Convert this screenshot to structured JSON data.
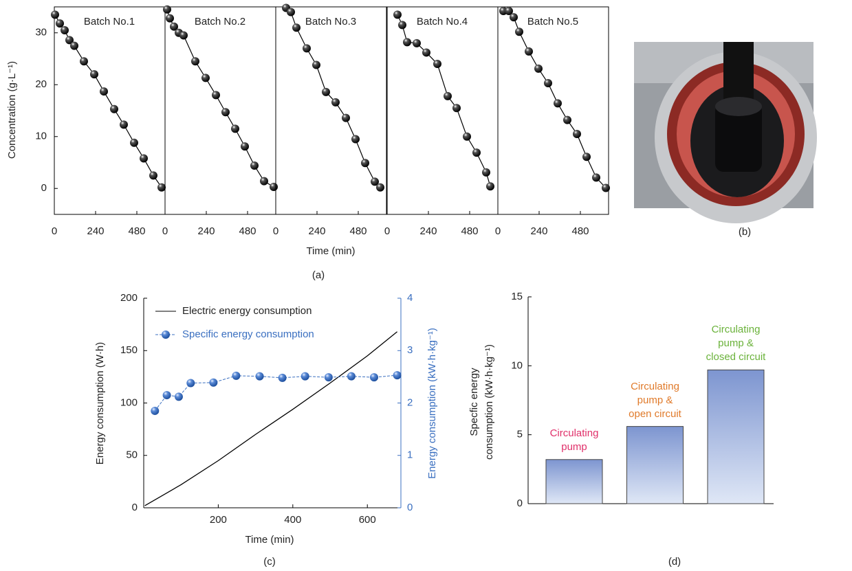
{
  "chart_data": [
    {
      "type": "batch-line",
      "caption": "(a)",
      "xlabel": "Time (min)",
      "ylabel": "Concentration (g·L⁻¹)",
      "ylim": [
        -5,
        35
      ],
      "yticks": [
        0,
        10,
        20,
        30
      ],
      "xlim": [
        0,
        644
      ],
      "xticks": [
        0,
        240,
        480
      ],
      "color": "#000000",
      "series": [
        {
          "name": "Batch No.1",
          "x": [
            4,
            32,
            60,
            88,
            116,
            172,
            232,
            288,
            348,
            404,
            464,
            520,
            576,
            624
          ],
          "values": [
            33.5,
            31.8,
            30.5,
            28.6,
            27.5,
            24.5,
            22,
            18.7,
            15.3,
            12.3,
            8.8,
            5.8,
            2.5,
            0.2
          ]
        },
        {
          "name": "Batch No.2",
          "x": [
            12,
            28,
            52,
            80,
            108,
            176,
            236,
            296,
            352,
            408,
            464,
            520,
            576,
            632
          ],
          "values": [
            34.5,
            32.8,
            31.2,
            30,
            29.5,
            24.5,
            21.3,
            18,
            14.7,
            11.5,
            8.1,
            4.4,
            1.4,
            0.3
          ]
        },
        {
          "name": "Batch No.3",
          "x": [
            60,
            88,
            120,
            180,
            236,
            292,
            348,
            408,
            464,
            520,
            576,
            608
          ],
          "values": [
            34.8,
            34,
            31,
            27,
            23.8,
            18.6,
            16.6,
            13.6,
            9.5,
            4.9,
            1.3,
            0.2
          ]
        },
        {
          "name": "Batch No.4",
          "x": [
            60,
            88,
            116,
            172,
            228,
            292,
            352,
            404,
            464,
            520,
            576,
            600
          ],
          "values": [
            33.5,
            31.5,
            28.2,
            28,
            26.2,
            24,
            17.8,
            15.5,
            10,
            6.9,
            3.1,
            0.4
          ]
        },
        {
          "name": "Batch No.5",
          "x": [
            32,
            64,
            92,
            124,
            180,
            236,
            292,
            348,
            404,
            460,
            516,
            572,
            628
          ],
          "values": [
            34.2,
            34.2,
            33,
            30.2,
            26.4,
            23.1,
            20.3,
            16.4,
            13.2,
            10.5,
            6.1,
            2.1,
            0.1
          ]
        }
      ]
    },
    {
      "type": "dual-line",
      "caption": "(c)",
      "xlabel": "Time (min)",
      "ylabel": "Energy consumption (W·h)",
      "y2label": "Energy consumption (kW·h·kg⁻¹)",
      "xlim": [
        0,
        690
      ],
      "xticks": [
        200,
        400,
        600
      ],
      "ylim": [
        0,
        200
      ],
      "yticks": [
        0,
        50,
        100,
        150,
        200
      ],
      "y2lim": [
        0,
        4
      ],
      "y2ticks": [
        0,
        1,
        2,
        3,
        4
      ],
      "legend": "upper left",
      "y2color": "#3a6fc0",
      "series": [
        {
          "name": "Electric energy consumption",
          "color": "#000000",
          "x": [
            3,
            100,
            200,
            300,
            400,
            500,
            600,
            680
          ],
          "values": [
            2,
            22,
            45,
            70,
            94,
            119,
            145,
            168
          ]
        },
        {
          "name": "Specific energy consumption",
          "color": "#3a6fc0",
          "axis": "y2",
          "x": [
            30,
            62,
            94,
            126,
            187,
            248,
            311,
            372,
            433,
            496,
            557,
            618,
            680
          ],
          "values": [
            1.85,
            2.15,
            2.12,
            2.38,
            2.39,
            2.52,
            2.51,
            2.48,
            2.51,
            2.49,
            2.51,
            2.49,
            2.53
          ]
        }
      ]
    },
    {
      "type": "bar",
      "caption": "(d)",
      "ylabel": [
        "Specfic energy",
        "consumption (kW·h·kg⁻¹)"
      ],
      "categories": [
        "Circulating\npump",
        "Circulating\npump &\nopen circuit",
        "Circulating\npump &\nclosed circuit"
      ],
      "category_colors": [
        "#e0306a",
        "#e07a2a",
        "#6ab23a"
      ],
      "values": [
        3.2,
        5.6,
        9.7
      ],
      "color": "#7d95d0",
      "ylim": [
        0,
        15
      ],
      "yticks": [
        0,
        5,
        10,
        15
      ]
    }
  ],
  "photo": {
    "caption": "(b)"
  }
}
